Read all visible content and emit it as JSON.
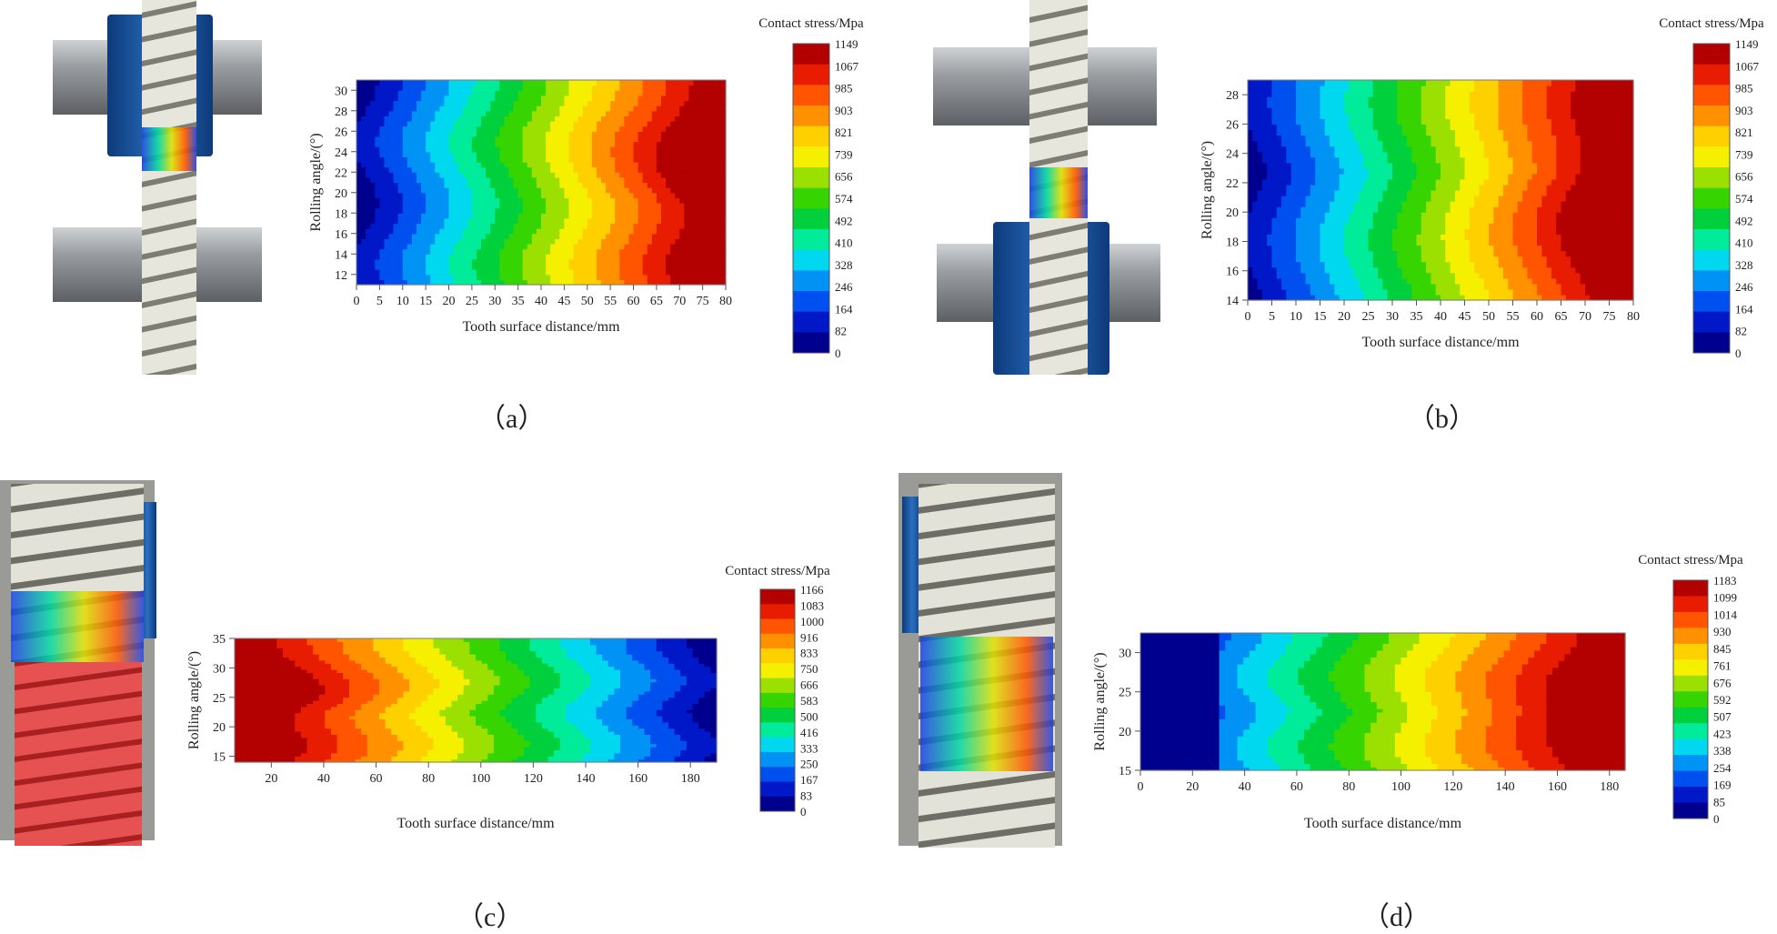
{
  "subplot_labels": [
    "（a）",
    "（b）",
    "（c）",
    "（d）"
  ],
  "colors": {
    "scale": [
      "#00008f",
      "#0018c8",
      "#0050f0",
      "#0092f5",
      "#00d8f0",
      "#00ec9a",
      "#00d03c",
      "#36d400",
      "#9be000",
      "#f5f000",
      "#ffd000",
      "#ff9000",
      "#ff5500",
      "#e81c00",
      "#b30000"
    ],
    "gear_face": "#d8d8cc",
    "gear_dark": "#8a8a80",
    "shaft": "#8e9296",
    "blue_hub": "#1f5fa8",
    "red_gear": "#e04848"
  },
  "chart_data": [
    {
      "type": "heatmap",
      "id": "a",
      "xlabel": "Tooth surface distance/mm",
      "ylabel": "Rolling angle/(°)",
      "xlim": [
        0,
        80
      ],
      "ylim": [
        11,
        31
      ],
      "x_ticks": [
        "0",
        "5",
        "10",
        "15",
        "20",
        "25",
        "30",
        "35",
        "40",
        "45",
        "50",
        "55",
        "60",
        "65",
        "70",
        "75",
        "80"
      ],
      "y_ticks": [
        "12",
        "14",
        "16",
        "18",
        "20",
        "22",
        "24",
        "26",
        "28",
        "30"
      ],
      "colorbar_title": "Contact stress/Mpa",
      "colorbar_ticks": [
        "1149",
        "1067",
        "985",
        "903",
        "821",
        "739",
        "656",
        "574",
        "492",
        "410",
        "328",
        "246",
        "164",
        "82",
        "0"
      ],
      "field": {
        "min": 0,
        "max": 1149,
        "y_centers": [
          13,
          25
        ],
        "hot_y": 22,
        "hot_depth": 14,
        "wave": 6
      }
    },
    {
      "type": "heatmap",
      "id": "b",
      "xlabel": "Tooth surface distance/mm",
      "ylabel": "Rolling angle/(°)",
      "xlim": [
        0,
        80
      ],
      "ylim": [
        14,
        29
      ],
      "x_ticks": [
        "0",
        "5",
        "10",
        "15",
        "20",
        "25",
        "30",
        "35",
        "40",
        "45",
        "50",
        "55",
        "60",
        "65",
        "70",
        "75",
        "80"
      ],
      "y_ticks": [
        "14",
        "16",
        "18",
        "20",
        "22",
        "24",
        "26",
        "28"
      ],
      "colorbar_title": "Contact stress/Mpa",
      "colorbar_ticks": [
        "1149",
        "1067",
        "985",
        "903",
        "821",
        "739",
        "656",
        "574",
        "492",
        "410",
        "328",
        "246",
        "164",
        "82",
        "0"
      ],
      "field": {
        "min": 0,
        "max": 1149,
        "y_centers": [
          18,
          27.5
        ],
        "hot_y": 20.5,
        "hot_depth": 14,
        "wave": 6
      }
    },
    {
      "type": "heatmap",
      "id": "c",
      "xlabel": "Tooth surface distance/mm",
      "ylabel": "Rolling angle/(°)",
      "xlim": [
        6,
        190
      ],
      "ylim": [
        14,
        35
      ],
      "x_ticks": [
        "20",
        "40",
        "60",
        "80",
        "100",
        "120",
        "140",
        "160",
        "180"
      ],
      "y_ticks": [
        "15",
        "20",
        "25",
        "30",
        "35"
      ],
      "colorbar_title": "Contact stress/Mpa",
      "colorbar_ticks": [
        "1166",
        "1083",
        "1000",
        "916",
        "833",
        "750",
        "666",
        "583",
        "500",
        "416",
        "333",
        "250",
        "167",
        "83",
        "0"
      ],
      "field": {
        "min": 0,
        "max": 1166,
        "reversed": true,
        "y_centers": [
          17,
          28
        ],
        "hot_y": 25,
        "hot_depth": 35,
        "wave": 12
      }
    },
    {
      "type": "heatmap",
      "id": "d",
      "xlabel": "Tooth surface distance/mm",
      "ylabel": "Rolling angle/(°)",
      "xlim": [
        0,
        186
      ],
      "ylim": [
        15,
        32.5
      ],
      "x_ticks": [
        "0",
        "20",
        "40",
        "60",
        "80",
        "100",
        "120",
        "140",
        "160",
        "180"
      ],
      "y_ticks": [
        "15",
        "20",
        "25",
        "30"
      ],
      "colorbar_title": "Contact stress/Mpa",
      "colorbar_ticks": [
        "1183",
        "1099",
        "1014",
        "930",
        "845",
        "761",
        "676",
        "592",
        "507",
        "423",
        "338",
        "254",
        "169",
        "85",
        "0"
      ],
      "field": {
        "min": 0,
        "max": 1183,
        "y_centers": [
          18,
          27
        ],
        "hot_y": 22.5,
        "hot_depth": 35,
        "wave": 12,
        "flat_end": 30
      }
    }
  ]
}
